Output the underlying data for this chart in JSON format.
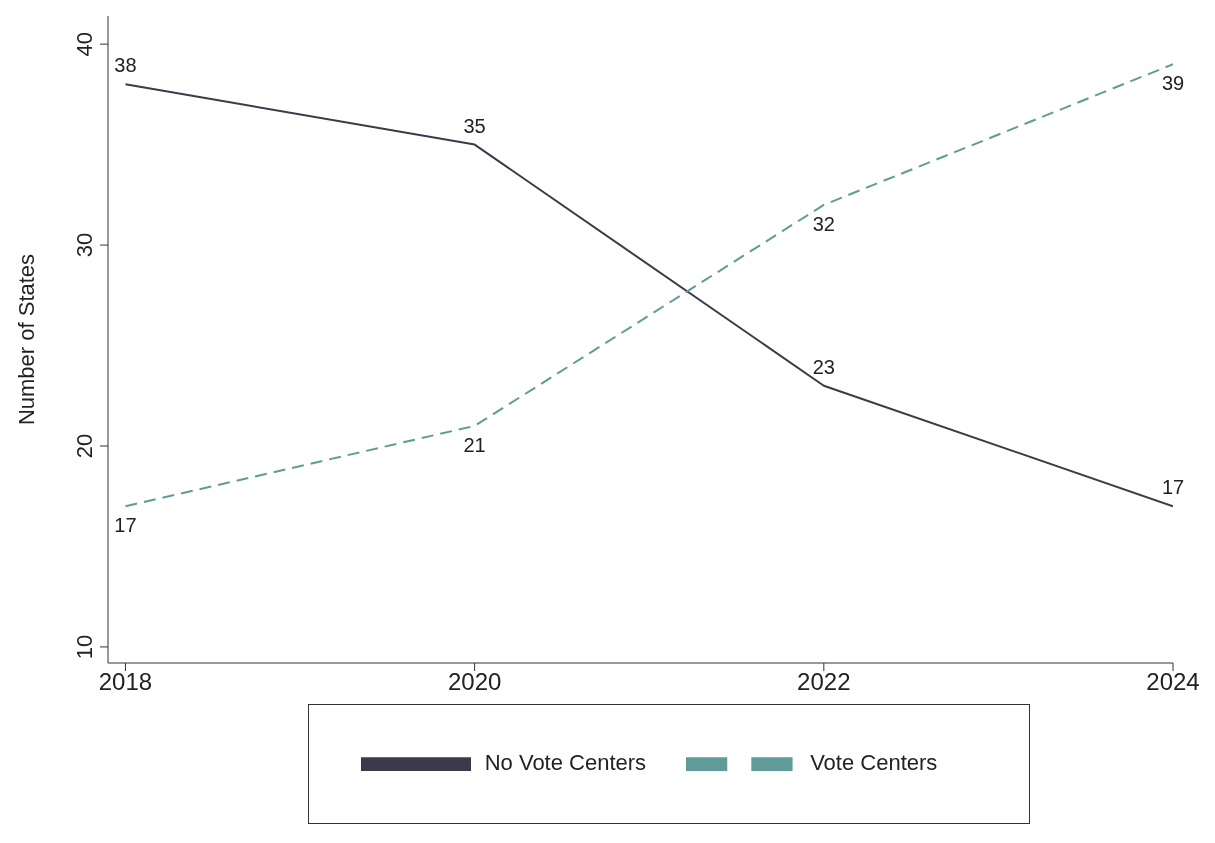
{
  "chart_data": {
    "type": "line",
    "ylabel": "Number of States",
    "x": [
      2018,
      2020,
      2022,
      2024
    ],
    "series": [
      {
        "name": "No Vote Centers",
        "color": "#3a3a48",
        "values": [
          38,
          35,
          23,
          17
        ],
        "line_style": "solid"
      },
      {
        "name": "Vote Centers",
        "color": "#5f9c98",
        "values": [
          17,
          21,
          32,
          39
        ],
        "line_style": "dashed"
      }
    ],
    "xlim": [
      2017.9,
      2024
    ],
    "xticks": [
      2018,
      2020,
      2022,
      2024
    ],
    "ylim": [
      9.2,
      41.4
    ],
    "yticks": [
      10,
      20,
      30,
      40
    ],
    "grid": false,
    "legend": "bottom",
    "data_labels": true,
    "marker": "none"
  }
}
